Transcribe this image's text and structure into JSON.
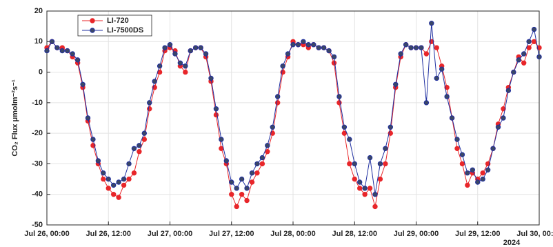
{
  "chart_data": {
    "type": "line",
    "ylabel": "CO₂ Flux μmolm⁻²s⁻¹",
    "x": [
      "2024-07-26T00:00",
      "2024-07-26T01:00",
      "2024-07-26T02:00",
      "2024-07-26T03:00",
      "2024-07-26T04:00",
      "2024-07-26T05:00",
      "2024-07-26T06:00",
      "2024-07-26T07:00",
      "2024-07-26T08:00",
      "2024-07-26T09:00",
      "2024-07-26T10:00",
      "2024-07-26T11:00",
      "2024-07-26T12:00",
      "2024-07-26T13:00",
      "2024-07-26T14:00",
      "2024-07-26T15:00",
      "2024-07-26T16:00",
      "2024-07-26T17:00",
      "2024-07-26T18:00",
      "2024-07-26T19:00",
      "2024-07-26T20:00",
      "2024-07-26T21:00",
      "2024-07-26T22:00",
      "2024-07-26T23:00",
      "2024-07-27T00:00",
      "2024-07-27T01:00",
      "2024-07-27T02:00",
      "2024-07-27T03:00",
      "2024-07-27T04:00",
      "2024-07-27T05:00",
      "2024-07-27T06:00",
      "2024-07-27T07:00",
      "2024-07-27T08:00",
      "2024-07-27T09:00",
      "2024-07-27T10:00",
      "2024-07-27T11:00",
      "2024-07-27T12:00",
      "2024-07-27T13:00",
      "2024-07-27T14:00",
      "2024-07-27T15:00",
      "2024-07-27T16:00",
      "2024-07-27T17:00",
      "2024-07-27T18:00",
      "2024-07-27T19:00",
      "2024-07-27T20:00",
      "2024-07-27T21:00",
      "2024-07-27T22:00",
      "2024-07-27T23:00",
      "2024-07-28T00:00",
      "2024-07-28T01:00",
      "2024-07-28T02:00",
      "2024-07-28T03:00",
      "2024-07-28T04:00",
      "2024-07-28T05:00",
      "2024-07-28T06:00",
      "2024-07-28T07:00",
      "2024-07-28T08:00",
      "2024-07-28T09:00",
      "2024-07-28T10:00",
      "2024-07-28T11:00",
      "2024-07-28T12:00",
      "2024-07-28T13:00",
      "2024-07-28T14:00",
      "2024-07-28T15:00",
      "2024-07-28T16:00",
      "2024-07-28T17:00",
      "2024-07-28T18:00",
      "2024-07-28T19:00",
      "2024-07-28T20:00",
      "2024-07-28T21:00",
      "2024-07-28T22:00",
      "2024-07-28T23:00",
      "2024-07-29T00:00",
      "2024-07-29T01:00",
      "2024-07-29T02:00",
      "2024-07-29T03:00",
      "2024-07-29T04:00",
      "2024-07-29T05:00",
      "2024-07-29T06:00",
      "2024-07-29T07:00",
      "2024-07-29T08:00",
      "2024-07-29T09:00",
      "2024-07-29T10:00",
      "2024-07-29T11:00",
      "2024-07-29T12:00",
      "2024-07-29T13:00",
      "2024-07-29T14:00",
      "2024-07-29T15:00",
      "2024-07-29T16:00",
      "2024-07-29T17:00",
      "2024-07-29T18:00",
      "2024-07-29T19:00",
      "2024-07-29T20:00",
      "2024-07-29T21:00",
      "2024-07-29T22:00",
      "2024-07-29T23:00",
      "2024-07-30T00:00"
    ],
    "series": [
      {
        "name": "LI-720",
        "color": "#e8262a",
        "values": [
          8,
          10,
          8,
          8,
          7,
          5,
          3,
          -5,
          -16,
          -24,
          -30,
          -35,
          -38,
          -40,
          -41,
          -37,
          -35,
          -33,
          -26,
          -22,
          -12,
          -5,
          0,
          7,
          8,
          7,
          2,
          0,
          7,
          8,
          8,
          5,
          -3,
          -14,
          -25,
          -30,
          -40,
          -44,
          -40,
          -42,
          -36,
          -33,
          -30,
          -26,
          -20,
          -10,
          0,
          5,
          10,
          9,
          9,
          8,
          9,
          8,
          8,
          7,
          3,
          -10,
          -20,
          -30,
          -35,
          -38,
          -40,
          -38,
          -44,
          -35,
          -30,
          -20,
          -5,
          5,
          9,
          8,
          8,
          8,
          6,
          10,
          8,
          2,
          -5,
          -15,
          -25,
          -30,
          -37,
          -33,
          -35,
          -33,
          -30,
          -25,
          -17,
          -12,
          -5,
          0,
          5,
          3,
          8,
          10,
          8
        ]
      },
      {
        "name": "LI-7500DS",
        "color": "#1f2fa0",
        "values": [
          7,
          10,
          8,
          7,
          7,
          6,
          4,
          -4,
          -15,
          -22,
          -29,
          -33,
          -35,
          -37,
          -36,
          -35,
          -30,
          -25,
          -24,
          -20,
          -10,
          -3,
          2,
          8,
          9,
          6,
          3,
          2,
          7,
          8,
          8,
          6,
          -2,
          -12,
          -22,
          -29,
          -36,
          -38,
          -35,
          -38,
          -33,
          -30,
          -28,
          -24,
          -18,
          -8,
          2,
          6,
          9,
          9,
          10,
          9,
          9,
          8,
          8,
          7,
          5,
          -8,
          -18,
          -22,
          -30,
          -36,
          -38,
          -28,
          -40,
          -30,
          -25,
          -18,
          -4,
          6,
          9,
          8,
          8,
          8,
          -10,
          16,
          -2,
          1,
          -8,
          -15,
          -22,
          -27,
          -33,
          -32,
          -36,
          -35,
          -32,
          -25,
          -18,
          -15,
          -6,
          0,
          4,
          6,
          10,
          14,
          5
        ]
      }
    ],
    "xlim": [
      "2024-07-26T00:00",
      "2024-07-30T00:00"
    ],
    "xticks": [
      {
        "value": "2024-07-26T00:00",
        "label": "Jul 26, 00:00"
      },
      {
        "value": "2024-07-26T12:00",
        "label": "Jul 26, 12:00"
      },
      {
        "value": "2024-07-27T00:00",
        "label": "Jul 27, 00:00"
      },
      {
        "value": "2024-07-27T12:00",
        "label": "Jul 27, 12:00"
      },
      {
        "value": "2024-07-28T00:00",
        "label": "Jul 28, 00:00"
      },
      {
        "value": "2024-07-28T12:00",
        "label": "Jul 28, 12:00"
      },
      {
        "value": "2024-07-29T00:00",
        "label": "Jul 29, 00:00"
      },
      {
        "value": "2024-07-29T12:00",
        "label": "Jul 29, 12:00"
      },
      {
        "value": "2024-07-30T00:00",
        "label": "Jul 30, 00:00"
      }
    ],
    "x_year_label": "2024",
    "ylim": [
      -50,
      20
    ],
    "yticks": [
      -50,
      -40,
      -30,
      -20,
      -10,
      0,
      10,
      20
    ],
    "grid": true,
    "legend": "upper left"
  }
}
